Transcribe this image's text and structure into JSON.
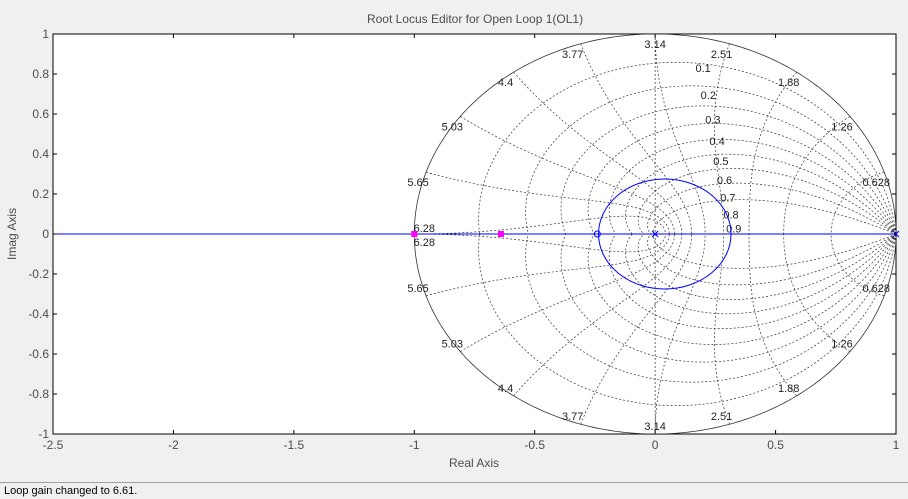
{
  "chart_data": {
    "type": "scatter",
    "title": "Root Locus Editor for Open Loop 1(OL1)",
    "xlabel": "Real Axis",
    "ylabel": "Imag Axis",
    "xlim": [
      -2.5,
      1
    ],
    "ylim": [
      -1,
      1
    ],
    "xticks": [
      "-2.5",
      "-2",
      "-1.5",
      "-1",
      "-0.5",
      "0",
      "0.5",
      "1"
    ],
    "yticks": [
      "-1",
      "-0.8",
      "-0.6",
      "-0.4",
      "-0.2",
      "0",
      "0.2",
      "0.4",
      "0.6",
      "0.8",
      "1"
    ],
    "grid": "z-plane",
    "locus_circle": {
      "center": [
        0.04,
        0
      ],
      "radius": 0.275
    },
    "open_loop_poles": [
      {
        "re": 0,
        "im": 0
      },
      {
        "re": 1,
        "im": 0
      }
    ],
    "open_loop_zeros": [
      {
        "re": -0.24,
        "im": 0
      }
    ],
    "closed_loop_poles": [
      {
        "re": -1.0,
        "im": 0
      },
      {
        "re": -0.64,
        "im": 0
      }
    ],
    "damping_labels": [
      "0.1",
      "0.2",
      "0.3",
      "0.4",
      "0.5",
      "0.6",
      "0.7",
      "0.8",
      "0.9"
    ],
    "natural_frequency_labels": [
      "0.628",
      "1.26",
      "1.88",
      "2.51",
      "3.14",
      "3.77",
      "4.4",
      "5.03",
      "5.65",
      "6.28"
    ],
    "colors": {
      "locus": "#0000ff",
      "grid": "#333333",
      "closed_loop_pole": "#ff00ff",
      "axes_background": "#ffffff",
      "figure_background": "#f0f0f0"
    }
  },
  "status": {
    "message": "Loop gain changed to 6.61."
  }
}
